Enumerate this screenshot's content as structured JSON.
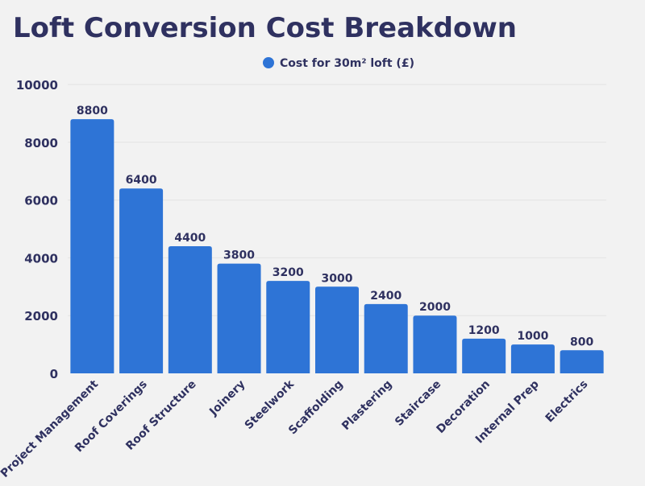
{
  "chart_data": {
    "type": "bar",
    "title": "Loft Conversion Cost Breakdown",
    "xlabel": "",
    "ylabel": "",
    "categories": [
      "Project Management",
      "Roof Coverings",
      "Roof Structure",
      "Joinery",
      "Steelwork",
      "Scaffolding",
      "Plastering",
      "Staircase",
      "Decoration",
      "Internal Prep",
      "Electrics"
    ],
    "series": [
      {
        "name": "Cost for 30m² loft (£)",
        "values": [
          8800,
          6400,
          4400,
          3800,
          3200,
          3000,
          2400,
          2000,
          1200,
          1000,
          800
        ],
        "color": "#2e74d6"
      }
    ],
    "ylim": [
      0,
      10000
    ],
    "yticks": [
      0,
      2000,
      4000,
      6000,
      8000,
      10000
    ],
    "grid": true,
    "legend": "top-center",
    "data_labels": true
  },
  "colors": {
    "text": "#2f3160",
    "background": "#f2f2f2",
    "grid": "#e3e3e3"
  }
}
